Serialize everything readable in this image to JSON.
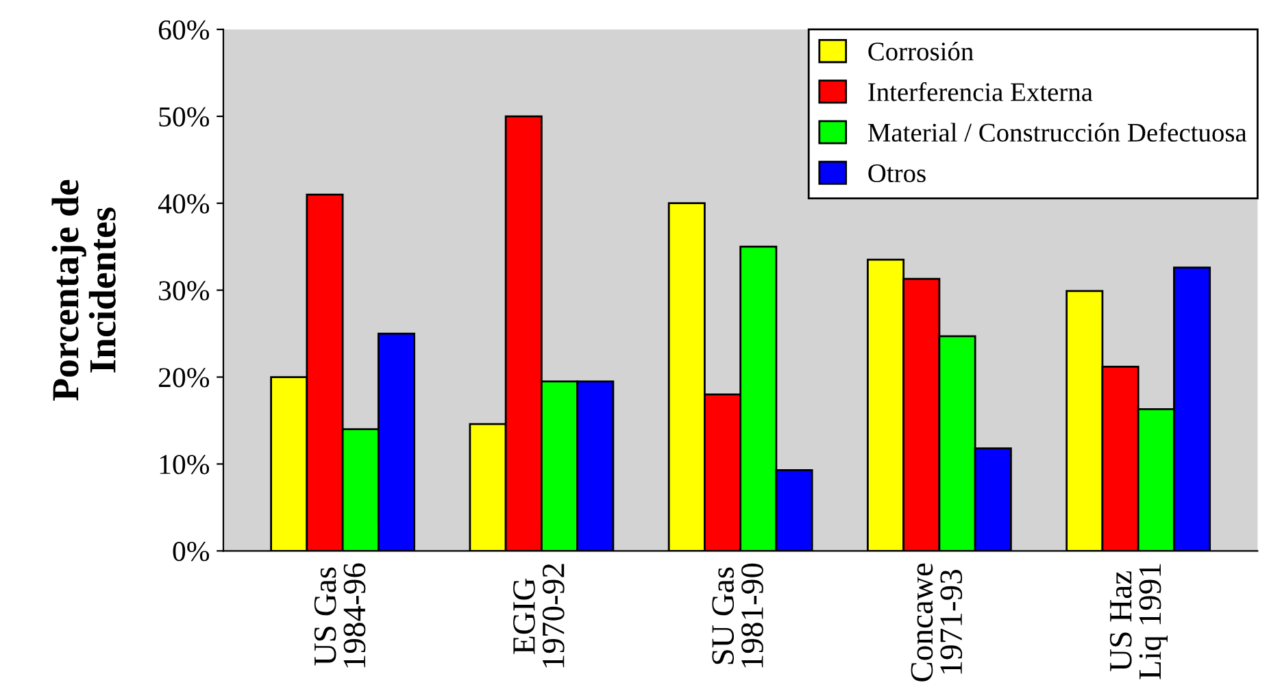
{
  "chart_data": {
    "type": "bar",
    "ylabel": "Porcentaje de\nIncidentes",
    "categories": [
      "US Gas\n1984-96",
      "EGIG\n1970-92",
      "SU Gas\n1981-90",
      "Concawe\n1971-93",
      "US Haz\nLiq 1991"
    ],
    "series": [
      {
        "name": "Corrosión",
        "color": "#ffff00",
        "values": [
          20,
          14.6,
          40,
          33.5,
          29.9
        ]
      },
      {
        "name": "Interferencia Externa",
        "color": "#ff0000",
        "values": [
          41,
          50,
          18,
          31.3,
          21.2
        ]
      },
      {
        "name": "Material / Construcción Defectuosa",
        "color": "#00ff00",
        "values": [
          14,
          19.5,
          35,
          24.7,
          16.3
        ]
      },
      {
        "name": "Otros",
        "color": "#0000ff",
        "values": [
          25,
          19.5,
          9.3,
          11.8,
          32.6
        ]
      }
    ],
    "ylim": [
      0,
      60
    ],
    "yticks": [
      {
        "value": 0,
        "label": "0%"
      },
      {
        "value": 10,
        "label": "10%"
      },
      {
        "value": 20,
        "label": "20%"
      },
      {
        "value": 30,
        "label": "30%"
      },
      {
        "value": 40,
        "label": "40%"
      },
      {
        "value": 50,
        "label": "50%"
      },
      {
        "value": 60,
        "label": "60%"
      }
    ],
    "legend": "top right",
    "grid": false
  }
}
